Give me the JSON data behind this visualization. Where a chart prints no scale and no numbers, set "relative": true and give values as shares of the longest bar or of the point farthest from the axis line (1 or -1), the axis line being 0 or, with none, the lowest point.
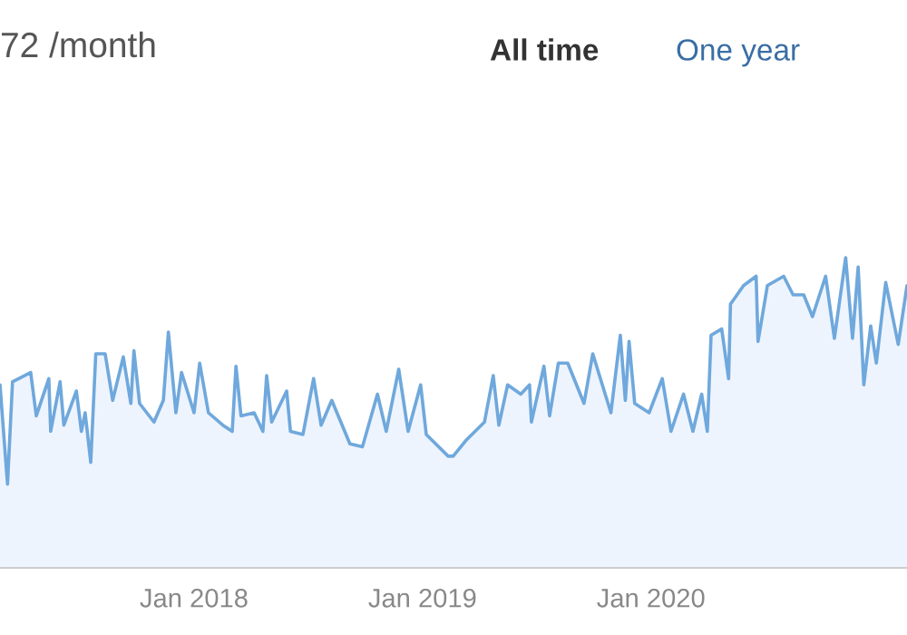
{
  "chart_data": {
    "type": "area",
    "title": "72 /month",
    "relative": true,
    "annotations": [
      "All time",
      "One year"
    ],
    "xlim": [
      "2017-02-25",
      "2021-02-13"
    ],
    "xticks": [
      {
        "value": "2018-01-01",
        "label": "Jan 2018"
      },
      {
        "value": "2019-01-01",
        "label": "Jan 2019"
      },
      {
        "value": "2020-01-01",
        "label": "Jan 2020"
      }
    ],
    "grid": false,
    "series": [
      {
        "color": "#6fa8dc",
        "x": [
          "2017-02-25",
          "2017-03-09",
          "2017-03-17",
          "2017-04-15",
          "2017-04-24",
          "2017-05-14",
          "2017-05-17",
          "2017-06-01",
          "2017-06-07",
          "2017-06-27",
          "2017-07-05",
          "2017-07-11",
          "2017-07-20",
          "2017-07-28",
          "2017-08-12",
          "2017-08-24",
          "2017-09-10",
          "2017-09-22",
          "2017-09-27",
          "2017-10-06",
          "2017-10-29",
          "2017-11-13",
          "2017-11-21",
          "2017-12-03",
          "2017-12-12",
          "2018-01-01",
          "2018-01-10",
          "2018-01-24",
          "2018-02-16",
          "2018-03-03",
          "2018-03-09",
          "2018-03-17",
          "2018-04-07",
          "2018-04-21",
          "2018-04-27",
          "2018-05-05",
          "2018-05-29",
          "2018-06-04",
          "2018-06-24",
          "2018-07-11",
          "2018-07-23",
          "2018-08-09",
          "2018-09-07",
          "2018-09-27",
          "2018-10-21",
          "2018-11-04",
          "2018-11-24",
          "2018-12-09",
          "2018-12-29",
          "2019-01-07",
          "2019-02-11",
          "2019-02-19",
          "2019-03-11",
          "2019-04-10",
          "2019-04-24",
          "2019-05-03",
          "2019-05-17",
          "2019-06-07",
          "2019-06-21",
          "2019-06-24",
          "2019-07-14",
          "2019-07-23",
          "2019-08-06",
          "2019-08-21",
          "2019-09-16",
          "2019-09-30",
          "2019-10-29",
          "2019-11-13",
          "2019-11-21",
          "2019-11-27",
          "2019-12-06",
          "2019-12-29",
          "2020-01-19",
          "2020-02-02",
          "2020-02-22",
          "2020-03-08",
          "2020-03-22",
          "2020-03-31",
          "2020-04-06",
          "2020-04-23",
          "2020-05-04",
          "2020-05-07",
          "2020-05-28",
          "2020-06-17",
          "2020-06-20",
          "2020-07-05",
          "2020-07-31",
          "2020-08-15",
          "2020-09-01",
          "2020-09-15",
          "2020-10-06",
          "2020-10-20",
          "2020-11-07",
          "2020-11-18",
          "2020-11-27",
          "2020-12-06",
          "2020-12-17",
          "2020-12-26",
          "2021-01-10",
          "2021-01-30",
          "2021-02-13"
        ],
        "values": [
          0.59,
          0.27,
          0.6,
          0.63,
          0.49,
          0.61,
          0.44,
          0.6,
          0.46,
          0.57,
          0.44,
          0.5,
          0.34,
          0.69,
          0.69,
          0.54,
          0.68,
          0.53,
          0.7,
          0.53,
          0.47,
          0.54,
          0.76,
          0.5,
          0.63,
          0.5,
          0.66,
          0.5,
          0.46,
          0.44,
          0.65,
          0.49,
          0.5,
          0.44,
          0.62,
          0.47,
          0.57,
          0.44,
          0.43,
          0.61,
          0.46,
          0.54,
          0.4,
          0.39,
          0.56,
          0.44,
          0.64,
          0.44,
          0.59,
          0.43,
          0.36,
          0.36,
          0.41,
          0.47,
          0.62,
          0.46,
          0.59,
          0.56,
          0.59,
          0.47,
          0.65,
          0.49,
          0.66,
          0.66,
          0.53,
          0.69,
          0.5,
          0.75,
          0.54,
          0.73,
          0.53,
          0.5,
          0.61,
          0.44,
          0.56,
          0.44,
          0.56,
          0.44,
          0.75,
          0.77,
          0.61,
          0.85,
          0.91,
          0.94,
          0.73,
          0.91,
          0.94,
          0.88,
          0.88,
          0.81,
          0.94,
          0.74,
          1.0,
          0.74,
          0.97,
          0.59,
          0.78,
          0.66,
          0.92,
          0.72,
          0.91
        ]
      }
    ]
  }
}
